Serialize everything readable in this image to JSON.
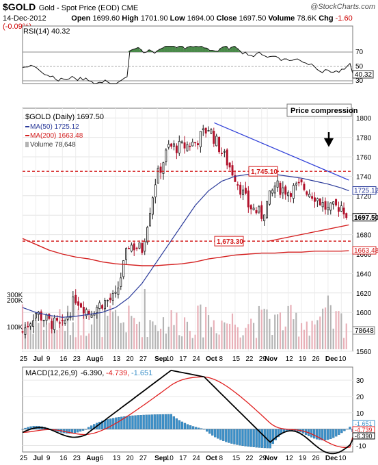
{
  "header": {
    "symbol": "$GOLD",
    "description": "Gold - Spot Price (EOD) CME",
    "watermark": "@StockCharts.com",
    "date": "14-Dec-2012",
    "open_label": "Open",
    "open": "1699.60",
    "high_label": "High",
    "high": "1701.90",
    "low_label": "Low",
    "low": "1694.00",
    "close_label": "Close",
    "close": "1697.50",
    "volume_label": "Volume",
    "volume": "78.6K",
    "chg_label": "Chg",
    "chg": "-1.60 (-0.09%)"
  },
  "rsi": {
    "label": "RSI(14) 40.32",
    "ticks": [
      "70",
      "50",
      "30"
    ],
    "last": "40.32"
  },
  "price_panel": {
    "legend_title": "$GOLD (Daily) 1697.50",
    "legend_ma50": "MA(50) 1725.12",
    "legend_ma200": "MA(200) 1663.48",
    "legend_volume": "Volume 78,648",
    "annotation": "Price compression",
    "resistance_label": "1,745.10",
    "support_label": "1,673.30",
    "ma50_tag": "1725.12",
    "last_tag": "1697.50",
    "ma200_tag": "1663.48",
    "volume_tag": "78648",
    "price_ticks": [
      "1800",
      "1780",
      "1760",
      "1740",
      "1720",
      "1700",
      "1680",
      "1660",
      "1640",
      "1620",
      "1600",
      "1580",
      "1560"
    ],
    "volume_ticks": [
      "300K",
      "200K",
      "100K"
    ]
  },
  "x_axis": {
    "labels": [
      "25",
      "Jul",
      "9",
      "16",
      "23",
      "Aug",
      "6",
      "13",
      "20",
      "27",
      "Sep",
      "10",
      "17",
      "24",
      "Oct",
      "8",
      "15",
      "22",
      "29",
      "Nov",
      "12",
      "19",
      "26",
      "Dec",
      "10"
    ]
  },
  "macd": {
    "label": "MACD(12,26,9)",
    "value1": "-6.390,",
    "value2": "-4.739,",
    "value3": "-1.651",
    "ticks": [
      "30",
      "20",
      "10",
      "0",
      "-10"
    ],
    "tag_hist": "-1.651",
    "tag_signal": "-4.739",
    "tag_macd": "-6.390"
  },
  "colors": {
    "up": "#1a1a1a",
    "down": "#b0102a",
    "ma50": "#2a3a9a",
    "ma200": "#d42020",
    "trend": "#3040d8",
    "level": "#d41c1c",
    "volume": "#b4b4b4",
    "volume_down": "#e8b0b8",
    "hist": "#3a8fc8",
    "rsi_fill": "#4a8a4a"
  },
  "chart_data": {
    "type": "candlestick",
    "title": "$GOLD (Daily)",
    "x_range": [
      "2012-06-25",
      "2012-12-14"
    ],
    "ylim": [
      1560,
      1810
    ],
    "series": [
      {
        "name": "$GOLD close (approx)",
        "x": [
          "2012-06-25",
          "2012-07-02",
          "2012-07-09",
          "2012-07-16",
          "2012-07-23",
          "2012-07-30",
          "2012-08-06",
          "2012-08-13",
          "2012-08-20",
          "2012-08-27",
          "2012-09-03",
          "2012-09-10",
          "2012-09-17",
          "2012-09-24",
          "2012-10-01",
          "2012-10-08",
          "2012-10-15",
          "2012-10-22",
          "2012-10-29",
          "2012-11-05",
          "2012-11-12",
          "2012-11-19",
          "2012-11-26",
          "2012-12-03",
          "2012-12-10",
          "2012-12-14"
        ],
        "values": [
          1580,
          1600,
          1590,
          1585,
          1615,
          1600,
          1610,
          1615,
          1670,
          1665,
          1735,
          1770,
          1770,
          1775,
          1790,
          1765,
          1740,
          1710,
          1700,
          1730,
          1725,
          1730,
          1720,
          1705,
          1710,
          1697.5
        ]
      },
      {
        "name": "MA(50)",
        "values": [
          1605,
          1600,
          1597,
          1595,
          1596,
          1598,
          1600,
          1605,
          1615,
          1630,
          1650,
          1670,
          1690,
          1710,
          1725,
          1735,
          1740,
          1742,
          1743,
          1742,
          1740,
          1738,
          1735,
          1732,
          1728,
          1725.12
        ]
      },
      {
        "name": "MA(200)",
        "values": [
          1676,
          1670,
          1664,
          1660,
          1657,
          1655,
          1652,
          1650,
          1649,
          1648,
          1648,
          1649,
          1650,
          1652,
          1655,
          1657,
          1659,
          1660,
          1661,
          1661,
          1662,
          1662,
          1663,
          1663,
          1663,
          1663.48
        ]
      }
    ],
    "levels": [
      {
        "label": "1,745.10",
        "value": 1745.1
      },
      {
        "label": "1,673.30",
        "value": 1673.3
      }
    ],
    "trendlines": [
      {
        "from": [
          "2012-10-04",
          1795
        ],
        "to": [
          "2012-12-14",
          1736
        ]
      },
      {
        "from": [
          "2012-11-01",
          1673
        ],
        "to": [
          "2012-12-14",
          1690
        ]
      }
    ],
    "rsi_ticks": [
      30,
      50,
      70
    ],
    "macd_ticks": [
      -10,
      0,
      10,
      20,
      30
    ]
  }
}
